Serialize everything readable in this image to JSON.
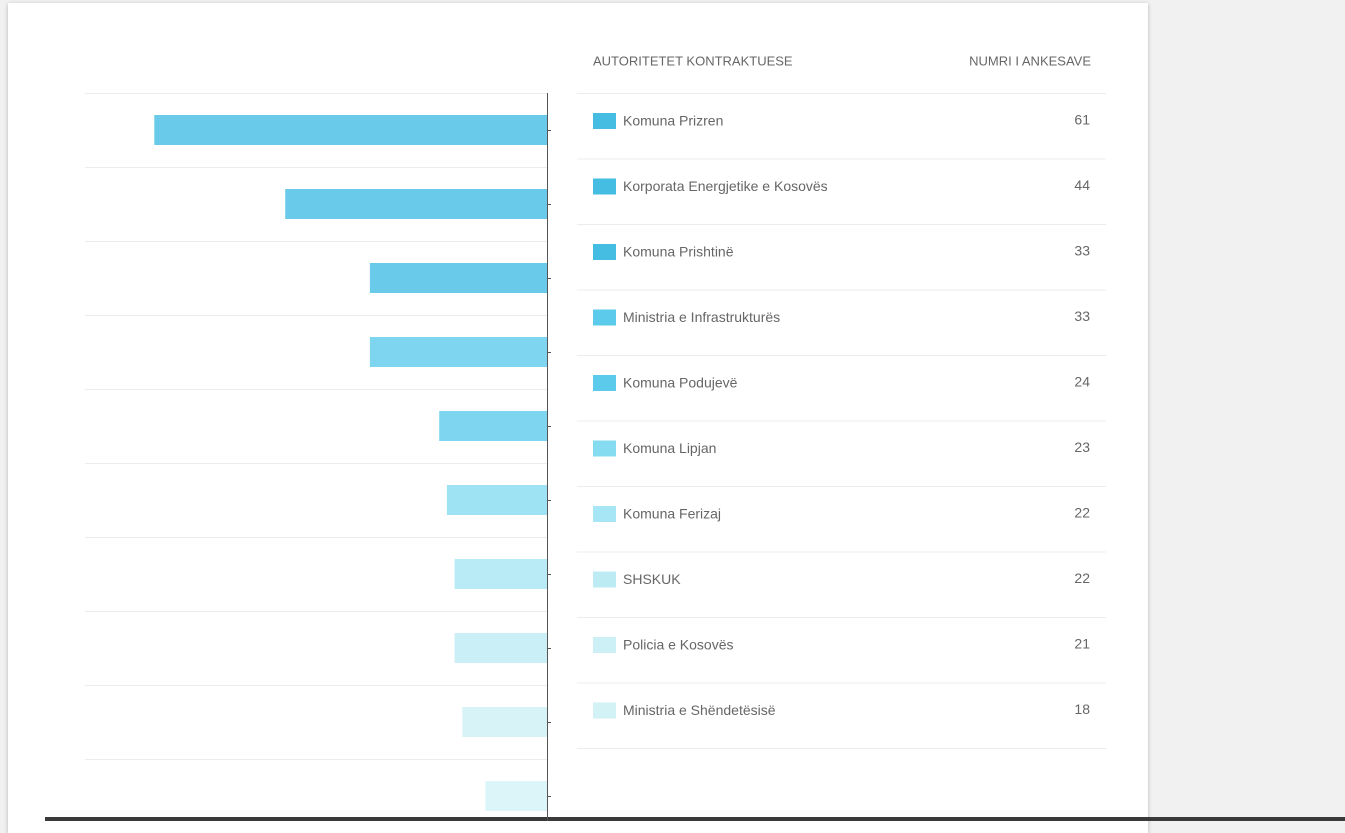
{
  "chart_data": {
    "type": "bar",
    "orientation": "horizontal",
    "column_headers": [
      "AUTORITETET KONTRAKTUESE",
      "NUMRI I ANKESAVE"
    ],
    "categories": [
      "Komuna Prizren",
      "Korporata Energjetike e Kosovës",
      "Komuna Prishtinë",
      "Ministria e Infrastrukturës",
      "Komuna Podujevë",
      "Komuna Lipjan",
      "Komuna Ferizaj",
      "SHSKUK",
      "Policia e Kosovës",
      "Ministria e Shëndetësisë"
    ],
    "values": [
      61,
      44,
      33,
      33,
      24,
      23,
      22,
      22,
      21,
      18
    ],
    "colors": [
      "#45bde3",
      "#45bde3",
      "#45bde3",
      "#5ccbeb",
      "#5ccbeb",
      "#85dcf1",
      "#a7e6f4",
      "#bdebf4",
      "#cdf0f6",
      "#d2f2f6"
    ],
    "xlim": [
      70,
      10
    ]
  }
}
